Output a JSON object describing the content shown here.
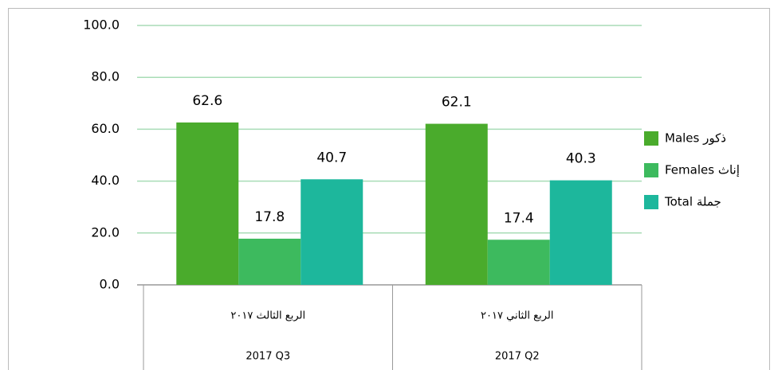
{
  "chart_data": {
    "type": "bar",
    "categories": [
      [
        "الربع الثالث ٢٠١٧",
        "2017 Q3"
      ],
      [
        "الربع الثاني ٢٠١٧",
        "2017 Q2"
      ]
    ],
    "series": [
      {
        "name": "Males ذكور",
        "color": "#4aab2c",
        "values": [
          62.6,
          62.1
        ]
      },
      {
        "name": "Females إناث",
        "color": "#3dba5e",
        "values": [
          17.8,
          17.4
        ]
      },
      {
        "name": "Total جملة",
        "color": "#1db79c",
        "values": [
          40.7,
          40.3
        ]
      }
    ],
    "ylim": [
      0,
      100
    ],
    "yticks": [
      {
        "value": 0,
        "label": "0.0"
      },
      {
        "value": 20,
        "label": "20.0"
      },
      {
        "value": 40,
        "label": "40.0"
      },
      {
        "value": 60,
        "label": "60.0"
      },
      {
        "value": 80,
        "label": "80.0"
      },
      {
        "value": 100,
        "label": "100.0"
      }
    ],
    "grid": true,
    "legend": "right"
  }
}
